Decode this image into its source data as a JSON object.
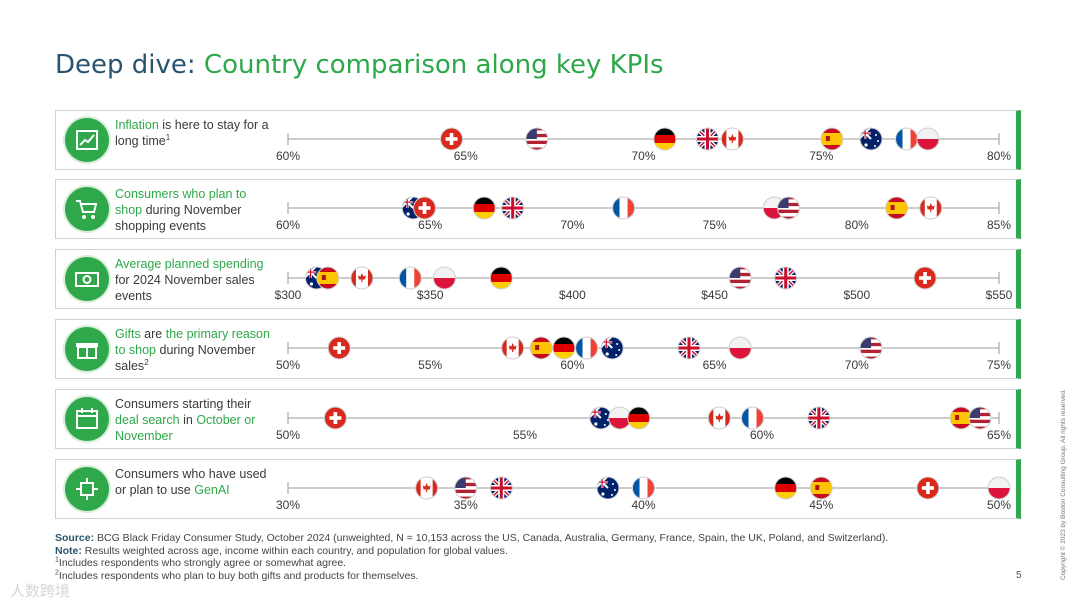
{
  "title": {
    "prefix": "Deep dive:",
    "main": "Country comparison along key KPIs"
  },
  "colors": {
    "green": "#2ea84a",
    "navy": "#29546f"
  },
  "chart_data": [
    {
      "type": "scatter",
      "id": "inflation",
      "label_parts": [
        {
          "text": "Inflation",
          "hl": true
        },
        {
          "text": " is here to stay for a long time",
          "hl": false
        }
      ],
      "sup": "1",
      "axis": {
        "min": 60,
        "max": 80,
        "ticks": [
          60,
          65,
          70,
          75,
          80
        ],
        "tick_labels": [
          "60%",
          "65%",
          "70%",
          "75%",
          "80%"
        ]
      },
      "points": [
        {
          "country": "Switzerland",
          "value": 64.6
        },
        {
          "country": "US",
          "value": 67.0
        },
        {
          "country": "Germany",
          "value": 70.6
        },
        {
          "country": "UK",
          "value": 71.8
        },
        {
          "country": "Canada",
          "value": 72.5
        },
        {
          "country": "Spain",
          "value": 75.3
        },
        {
          "country": "Australia",
          "value": 76.4
        },
        {
          "country": "France",
          "value": 77.4
        },
        {
          "country": "Poland",
          "value": 78.0
        }
      ]
    },
    {
      "type": "scatter",
      "id": "november-events",
      "label_parts": [
        {
          "text": "Consumers who plan to shop",
          "hl": true
        },
        {
          "text": " during November shopping events",
          "hl": false
        }
      ],
      "sup": "",
      "axis": {
        "min": 60,
        "max": 85,
        "ticks": [
          60,
          65,
          70,
          75,
          80,
          85
        ],
        "tick_labels": [
          "60%",
          "65%",
          "70%",
          "75%",
          "80%",
          "85%"
        ]
      },
      "points": [
        {
          "country": "Australia",
          "value": 64.4
        },
        {
          "country": "Switzerland",
          "value": 64.8
        },
        {
          "country": "Germany",
          "value": 66.9
        },
        {
          "country": "UK",
          "value": 67.9
        },
        {
          "country": "France",
          "value": 71.8
        },
        {
          "country": "Poland",
          "value": 77.1
        },
        {
          "country": "US",
          "value": 77.6
        },
        {
          "country": "Spain",
          "value": 81.4
        },
        {
          "country": "Canada",
          "value": 82.6
        }
      ]
    },
    {
      "type": "scatter",
      "id": "planned-spending",
      "label_parts": [
        {
          "text": "Average planned spending",
          "hl": true
        },
        {
          "text": " for 2024 November sales events",
          "hl": false
        }
      ],
      "sup": "",
      "axis": {
        "min": 300,
        "max": 550,
        "ticks": [
          300,
          350,
          400,
          450,
          500,
          550
        ],
        "tick_labels": [
          "$300",
          "$350",
          "$400",
          "$450",
          "$500",
          "$550"
        ]
      },
      "points": [
        {
          "country": "Australia",
          "value": 310
        },
        {
          "country": "Spain",
          "value": 314
        },
        {
          "country": "Canada",
          "value": 326
        },
        {
          "country": "France",
          "value": 343
        },
        {
          "country": "Poland",
          "value": 355
        },
        {
          "country": "Germany",
          "value": 375
        },
        {
          "country": "US",
          "value": 459
        },
        {
          "country": "UK",
          "value": 475
        },
        {
          "country": "Switzerland",
          "value": 524
        }
      ]
    },
    {
      "type": "scatter",
      "id": "primary-reason",
      "label_parts": [
        {
          "text": "Gifts",
          "hl": true
        },
        {
          "text": " are ",
          "hl": false
        },
        {
          "text": "the primary reason to shop",
          "hl": true
        },
        {
          "text": " during November sales",
          "hl": false
        }
      ],
      "sup": "2",
      "axis": {
        "min": 50,
        "max": 75,
        "ticks": [
          50,
          55,
          60,
          65,
          70,
          75
        ],
        "tick_labels": [
          "50%",
          "55%",
          "60%",
          "65%",
          "70%",
          "75%"
        ]
      },
      "points": [
        {
          "country": "Switzerland",
          "value": 51.8
        },
        {
          "country": "Canada",
          "value": 57.9
        },
        {
          "country": "Spain",
          "value": 58.9
        },
        {
          "country": "Germany",
          "value": 59.7
        },
        {
          "country": "France",
          "value": 60.5
        },
        {
          "country": "Australia",
          "value": 61.4
        },
        {
          "country": "UK",
          "value": 64.1
        },
        {
          "country": "Poland",
          "value": 65.9
        },
        {
          "country": "US",
          "value": 70.5
        }
      ]
    },
    {
      "type": "scatter",
      "id": "deal-search",
      "label_parts": [
        {
          "text": "Consumers starting their ",
          "hl": false
        },
        {
          "text": "deal search",
          "hl": true
        },
        {
          "text": " in ",
          "hl": false
        },
        {
          "text": "October or November",
          "hl": true
        }
      ],
      "sup": "",
      "axis": {
        "min": 50,
        "max": 65,
        "ticks": [
          50,
          55,
          60,
          65
        ],
        "tick_labels": [
          "50%",
          "55%",
          "60%",
          "65%"
        ]
      },
      "points": [
        {
          "country": "Switzerland",
          "value": 51.0
        },
        {
          "country": "Australia",
          "value": 56.6
        },
        {
          "country": "Poland",
          "value": 57.0
        },
        {
          "country": "Germany",
          "value": 57.4
        },
        {
          "country": "Canada",
          "value": 59.1
        },
        {
          "country": "France",
          "value": 59.8
        },
        {
          "country": "UK",
          "value": 61.2
        },
        {
          "country": "Spain",
          "value": 64.2
        },
        {
          "country": "US",
          "value": 64.6
        }
      ]
    },
    {
      "type": "scatter",
      "id": "genai",
      "label_parts": [
        {
          "text": "Consumers who have used or plan to use ",
          "hl": false
        },
        {
          "text": "GenAI",
          "hl": true
        }
      ],
      "sup": "",
      "axis": {
        "min": 30,
        "max": 50,
        "ticks": [
          30,
          35,
          40,
          45,
          50
        ],
        "tick_labels": [
          "30%",
          "35%",
          "40%",
          "45%",
          "50%"
        ]
      },
      "points": [
        {
          "country": "Canada",
          "value": 33.9
        },
        {
          "country": "US",
          "value": 35.0
        },
        {
          "country": "UK",
          "value": 36.0
        },
        {
          "country": "Australia",
          "value": 39.0
        },
        {
          "country": "France",
          "value": 40.0
        },
        {
          "country": "Germany",
          "value": 44.0
        },
        {
          "country": "Spain",
          "value": 45.0
        },
        {
          "country": "Switzerland",
          "value": 48.0
        },
        {
          "country": "Poland",
          "value": 50.0
        }
      ]
    }
  ],
  "footnotes": {
    "source_label": "Source:",
    "source_text": "BCG Black Friday Consumer Study, October 2024 (unweighted, N = 10,153 across the US, Canada, Australia, Germany, France, Spain, the UK, Poland, and Switzerland).",
    "note_label": "Note:",
    "note_text": "Results weighted across age, income within each country, and population for global values.",
    "fn1_mark": "1",
    "fn1": "Includes respondents who strongly agree or somewhat agree.",
    "fn2_mark": "2",
    "fn2": "Includes respondents who plan to buy both gifts and products for themselves."
  },
  "copyright": "Copyright © 2023 by Boston Consulting Group. All rights reserved.",
  "page_number": "5",
  "watermark": "人数跨境"
}
